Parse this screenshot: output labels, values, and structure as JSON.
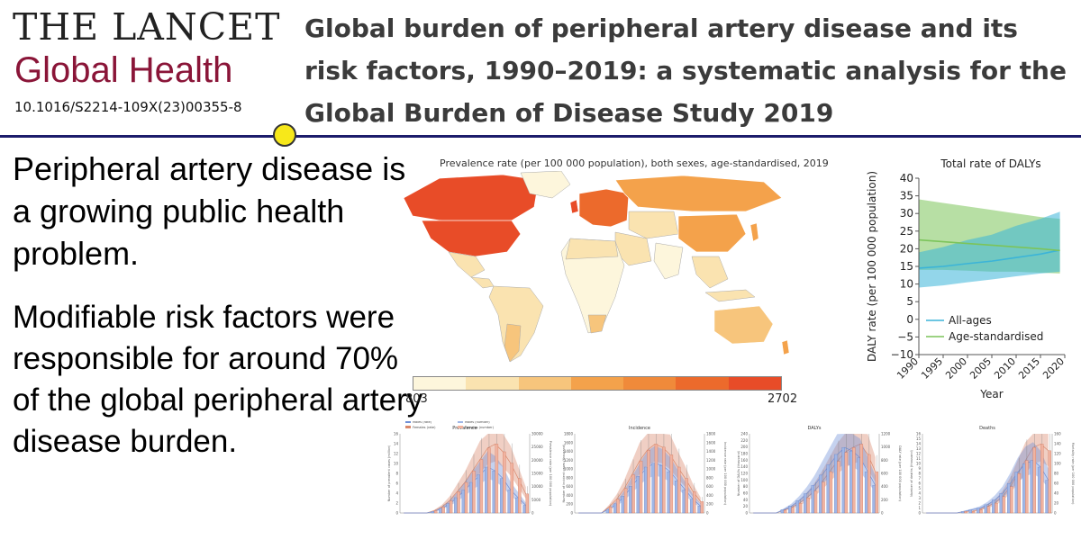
{
  "header": {
    "journal_name": "THE LANCET",
    "journal_sub": "Global Health",
    "doi": "10.1016/S2214-109X(23)00355-8",
    "title": "Global burden of peripheral artery disease and its risk factors, 1990–2019: a systematic analysis for the Global Burden of Disease Study 2019"
  },
  "claims": {
    "first": "Peripheral artery disease is a growing public health problem.",
    "second": "Modifiable risk factors were responsible for around 70% of the global peripheral artery disease burden."
  },
  "map": {
    "title": "Prevalence rate (per 100 000 population), both sexes, age-standardised, 2019",
    "legend_min": "803",
    "legend_max": "2702",
    "colors": [
      "#fdf6dc",
      "#fae3b0",
      "#f7c57c",
      "#f4a24b",
      "#f08a3a",
      "#ec6a2c",
      "#e84c28"
    ]
  },
  "chart_data": [
    {
      "type": "area",
      "title": "Total rate of DALYs",
      "xlabel": "Year",
      "ylabel": "DALY rate (per 100 000 population)",
      "xlim": [
        1990,
        2020
      ],
      "ylim": [
        -10,
        40
      ],
      "x_ticks": [
        "1990",
        "1995",
        "2000",
        "2005",
        "2010",
        "2015",
        "2020"
      ],
      "y_ticks": [
        "−10",
        "−5",
        "0",
        "5",
        "10",
        "15",
        "20",
        "25",
        "30",
        "35",
        "40"
      ],
      "x": [
        1990,
        1995,
        2000,
        2005,
        2010,
        2015,
        2019
      ],
      "series": [
        {
          "name": "All-ages",
          "color": "#3bb4d8",
          "values": [
            14.5,
            15.0,
            15.8,
            16.5,
            17.5,
            18.5,
            19.6
          ],
          "lower": [
            9.0,
            9.6,
            10.5,
            11.3,
            12.2,
            13.0,
            13.5
          ],
          "upper": [
            19.0,
            20.5,
            22.5,
            24.0,
            26.5,
            28.5,
            30.5
          ]
        },
        {
          "name": "Age-standardised",
          "color": "#7cc45a",
          "values": [
            22.5,
            22.0,
            21.5,
            21.0,
            20.5,
            20.0,
            19.5
          ],
          "lower": [
            14.0,
            14.0,
            13.8,
            13.5,
            13.5,
            13.2,
            13.0
          ],
          "upper": [
            34.0,
            33.0,
            32.0,
            31.0,
            30.0,
            29.0,
            28.5
          ]
        }
      ],
      "legend_position": "bottom-left"
    },
    {
      "type": "bar",
      "title": "Prevalence",
      "legend": [
        "Males (rate)",
        "Females (rate)",
        "Males (number)",
        "Females (number)"
      ],
      "y_ticks": [
        "0",
        "2",
        "4",
        "6",
        "8",
        "10",
        "12",
        "14",
        "16"
      ],
      "y2_ticks": [
        "0",
        "5000",
        "10000",
        "15000",
        "20000",
        "25000",
        "30000"
      ],
      "ylabel": "Number of prevalent cases (million)",
      "y2label": "Prevalence rate (per 100 000 population)",
      "males": [
        0,
        0,
        0,
        0,
        0.2,
        0.6,
        1.2,
        2.0,
        3.0,
        4.0,
        5.0,
        6.0,
        5.5,
        4.5,
        3.0,
        2.0,
        1.0
      ],
      "females": [
        0,
        0,
        0,
        0,
        0.3,
        0.8,
        1.6,
        2.8,
        4.0,
        5.5,
        7.0,
        8.5,
        9.0,
        8.0,
        6.5,
        4.5,
        2.5
      ]
    },
    {
      "type": "bar",
      "title": "Incidence",
      "y_ticks": [
        "0",
        "200",
        "400",
        "600",
        "800",
        "1000",
        "1200",
        "1400",
        "1600",
        "1800"
      ],
      "y2_ticks": [
        "0",
        "200",
        "400",
        "600",
        "800",
        "1000",
        "1200",
        "1400",
        "1600",
        "1800"
      ],
      "ylabel": "Number of incident cases (thousand)",
      "y2label": "Incidence rate (per 100 000 population)",
      "males": [
        0,
        0,
        0,
        0,
        50,
        120,
        220,
        350,
        480,
        600,
        650,
        620,
        540,
        420,
        300,
        180,
        90
      ],
      "females": [
        0,
        0,
        0,
        0,
        80,
        180,
        320,
        500,
        680,
        820,
        900,
        860,
        760,
        600,
        450,
        280,
        150
      ]
    },
    {
      "type": "bar",
      "title": "DALYs",
      "y_ticks": [
        "0",
        "20",
        "40",
        "60",
        "80",
        "100",
        "120",
        "140",
        "160",
        "180",
        "200",
        "220",
        "240"
      ],
      "y2_ticks": [
        "0",
        "200",
        "400",
        "600",
        "800",
        "1000",
        "1200"
      ],
      "ylabel": "Number of DALYs (thousand)",
      "y2label": "DALY rate (per 100 000 population)",
      "males": [
        0,
        0,
        0,
        0,
        5,
        10,
        18,
        28,
        40,
        55,
        70,
        85,
        95,
        90,
        80,
        60,
        40
      ],
      "females": [
        0,
        0,
        0,
        0,
        4,
        8,
        14,
        22,
        32,
        45,
        60,
        75,
        88,
        95,
        100,
        85,
        60
      ]
    },
    {
      "type": "bar",
      "title": "Deaths",
      "y_ticks": [
        "0",
        "1",
        "2",
        "3",
        "4",
        "5",
        "6",
        "7",
        "8",
        "9",
        "10",
        "11",
        "12",
        "13",
        "14",
        "15",
        "16"
      ],
      "y2_ticks": [
        "0",
        "20",
        "40",
        "60",
        "80",
        "100",
        "120",
        "140",
        "160"
      ],
      "ylabel": "Number of deaths (thousand)",
      "y2label": "Mortality rate (per 100 000 population)",
      "males": [
        0,
        0,
        0,
        0,
        0,
        0.1,
        0.2,
        0.3,
        0.5,
        0.8,
        1.2,
        1.8,
        2.5,
        3.0,
        3.2,
        2.8,
        2.0
      ],
      "females": [
        0,
        0,
        0,
        0,
        0,
        0.1,
        0.1,
        0.2,
        0.4,
        0.6,
        1.0,
        1.6,
        2.4,
        3.2,
        4.0,
        4.2,
        3.8
      ]
    }
  ]
}
